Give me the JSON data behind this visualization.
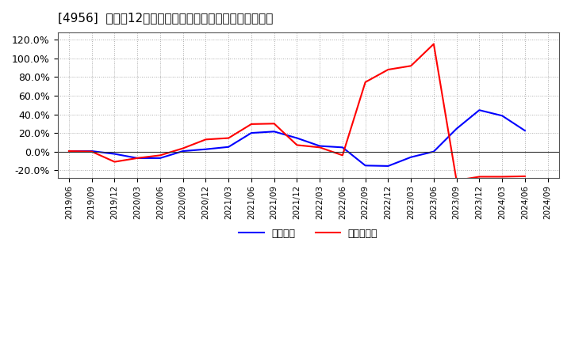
{
  "title": "[4956]  利益だ12か月移動合計の対前年同期増減率の推移",
  "legend_labels": [
    "経常利益",
    "当期純利益"
  ],
  "line_colors": [
    "#0000ff",
    "#ff0000"
  ],
  "background_color": "#ffffff",
  "plot_bg_color": "#ffffff",
  "grid_color": "#aaaaaa",
  "yticks": [
    -0.2,
    0.0,
    0.2,
    0.4,
    0.6,
    0.8,
    1.0,
    1.2
  ],
  "ylim": [
    -0.28,
    1.28
  ],
  "x_labels": [
    "2019/06",
    "2019/09",
    "2019/12",
    "2020/03",
    "2020/06",
    "2020/09",
    "2020/12",
    "2021/03",
    "2021/06",
    "2021/09",
    "2021/12",
    "2022/03",
    "2022/06",
    "2022/09",
    "2022/12",
    "2023/03",
    "2023/06",
    "2023/09",
    "2023/12",
    "2024/03",
    "2024/06",
    "2024/09"
  ],
  "keijo_rieki": [
    0.005,
    0.005,
    -0.025,
    -0.07,
    -0.07,
    0.005,
    0.025,
    0.05,
    0.2,
    0.215,
    0.145,
    0.06,
    0.045,
    -0.15,
    -0.155,
    -0.06,
    0.0,
    0.245,
    0.445,
    0.385,
    0.225,
    null
  ],
  "toki_jun_rieki": [
    0.005,
    0.0,
    -0.11,
    -0.07,
    -0.04,
    0.035,
    0.13,
    0.145,
    0.295,
    0.3,
    0.07,
    0.045,
    -0.04,
    0.745,
    0.88,
    0.92,
    1.155,
    -0.31,
    -0.27,
    -0.27,
    -0.265,
    null
  ]
}
